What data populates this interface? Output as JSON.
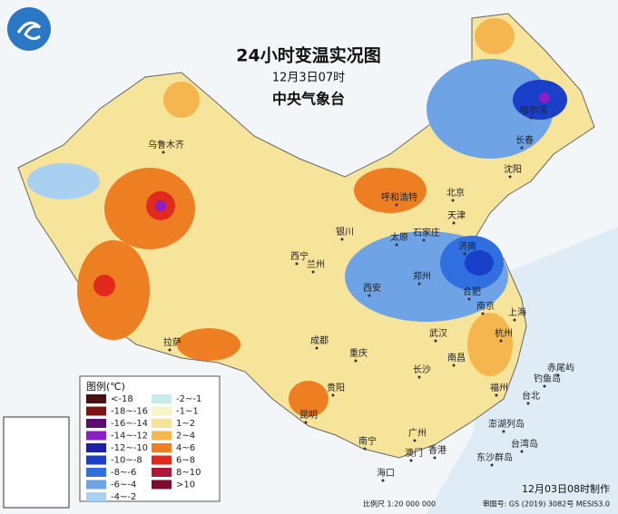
{
  "header": {
    "title": "24小时变温实况图",
    "subtitle": "12月3日07时",
    "agency": "中央气象台"
  },
  "legend": {
    "title": "图例(℃)",
    "items": [
      {
        "label": "<-18",
        "color": "#4a0f0f"
      },
      {
        "label": "-18~-16",
        "color": "#7a1414"
      },
      {
        "label": "-16~-14",
        "color": "#5a0f6e"
      },
      {
        "label": "-14~-12",
        "color": "#8b1fc4"
      },
      {
        "label": "-12~-10",
        "color": "#1d1ea8"
      },
      {
        "label": "-10~-8",
        "color": "#1a3fc8"
      },
      {
        "label": "-8~-6",
        "color": "#2f6fe0"
      },
      {
        "label": "-6~-4",
        "color": "#6ea4e6"
      },
      {
        "label": "-4~-2",
        "color": "#a9d0f0"
      },
      {
        "label": "-2~-1",
        "color": "#c8ecec"
      },
      {
        "label": "-1~1",
        "color": "#f7f4c8"
      },
      {
        "label": "1~2",
        "color": "#f6e49a"
      },
      {
        "label": "2~4",
        "color": "#f5b650"
      },
      {
        "label": "4~6",
        "color": "#ee7e22"
      },
      {
        "label": "6~8",
        "color": "#e02a1e"
      },
      {
        "label": "8~10",
        "color": "#b0183a"
      },
      {
        "label": ">10",
        "color": "#7e0c2c"
      }
    ]
  },
  "cities": [
    "哈尔滨",
    "长春",
    "沈阳",
    "北京",
    "天津",
    "呼和浩特",
    "石家庄",
    "太原",
    "济南",
    "银川",
    "西宁",
    "兰州",
    "西安",
    "郑州",
    "合肥",
    "南京",
    "上海",
    "武汉",
    "杭州",
    "成都",
    "重庆",
    "长沙",
    "南昌",
    "福州",
    "台北",
    "贵阳",
    "昆明",
    "南宁",
    "广州",
    "香港",
    "澳门",
    "海口",
    "拉萨",
    "乌鲁木齐",
    "赤尾屿",
    "钓鱼岛",
    "澎湖列岛",
    "台湾岛",
    "东沙群岛"
  ],
  "footer": {
    "made": "12月03日08时制作",
    "scale": "比例尺 1:20 000 000",
    "approval": "审图号: GS (2019) 3082号 MESIS3.0"
  }
}
